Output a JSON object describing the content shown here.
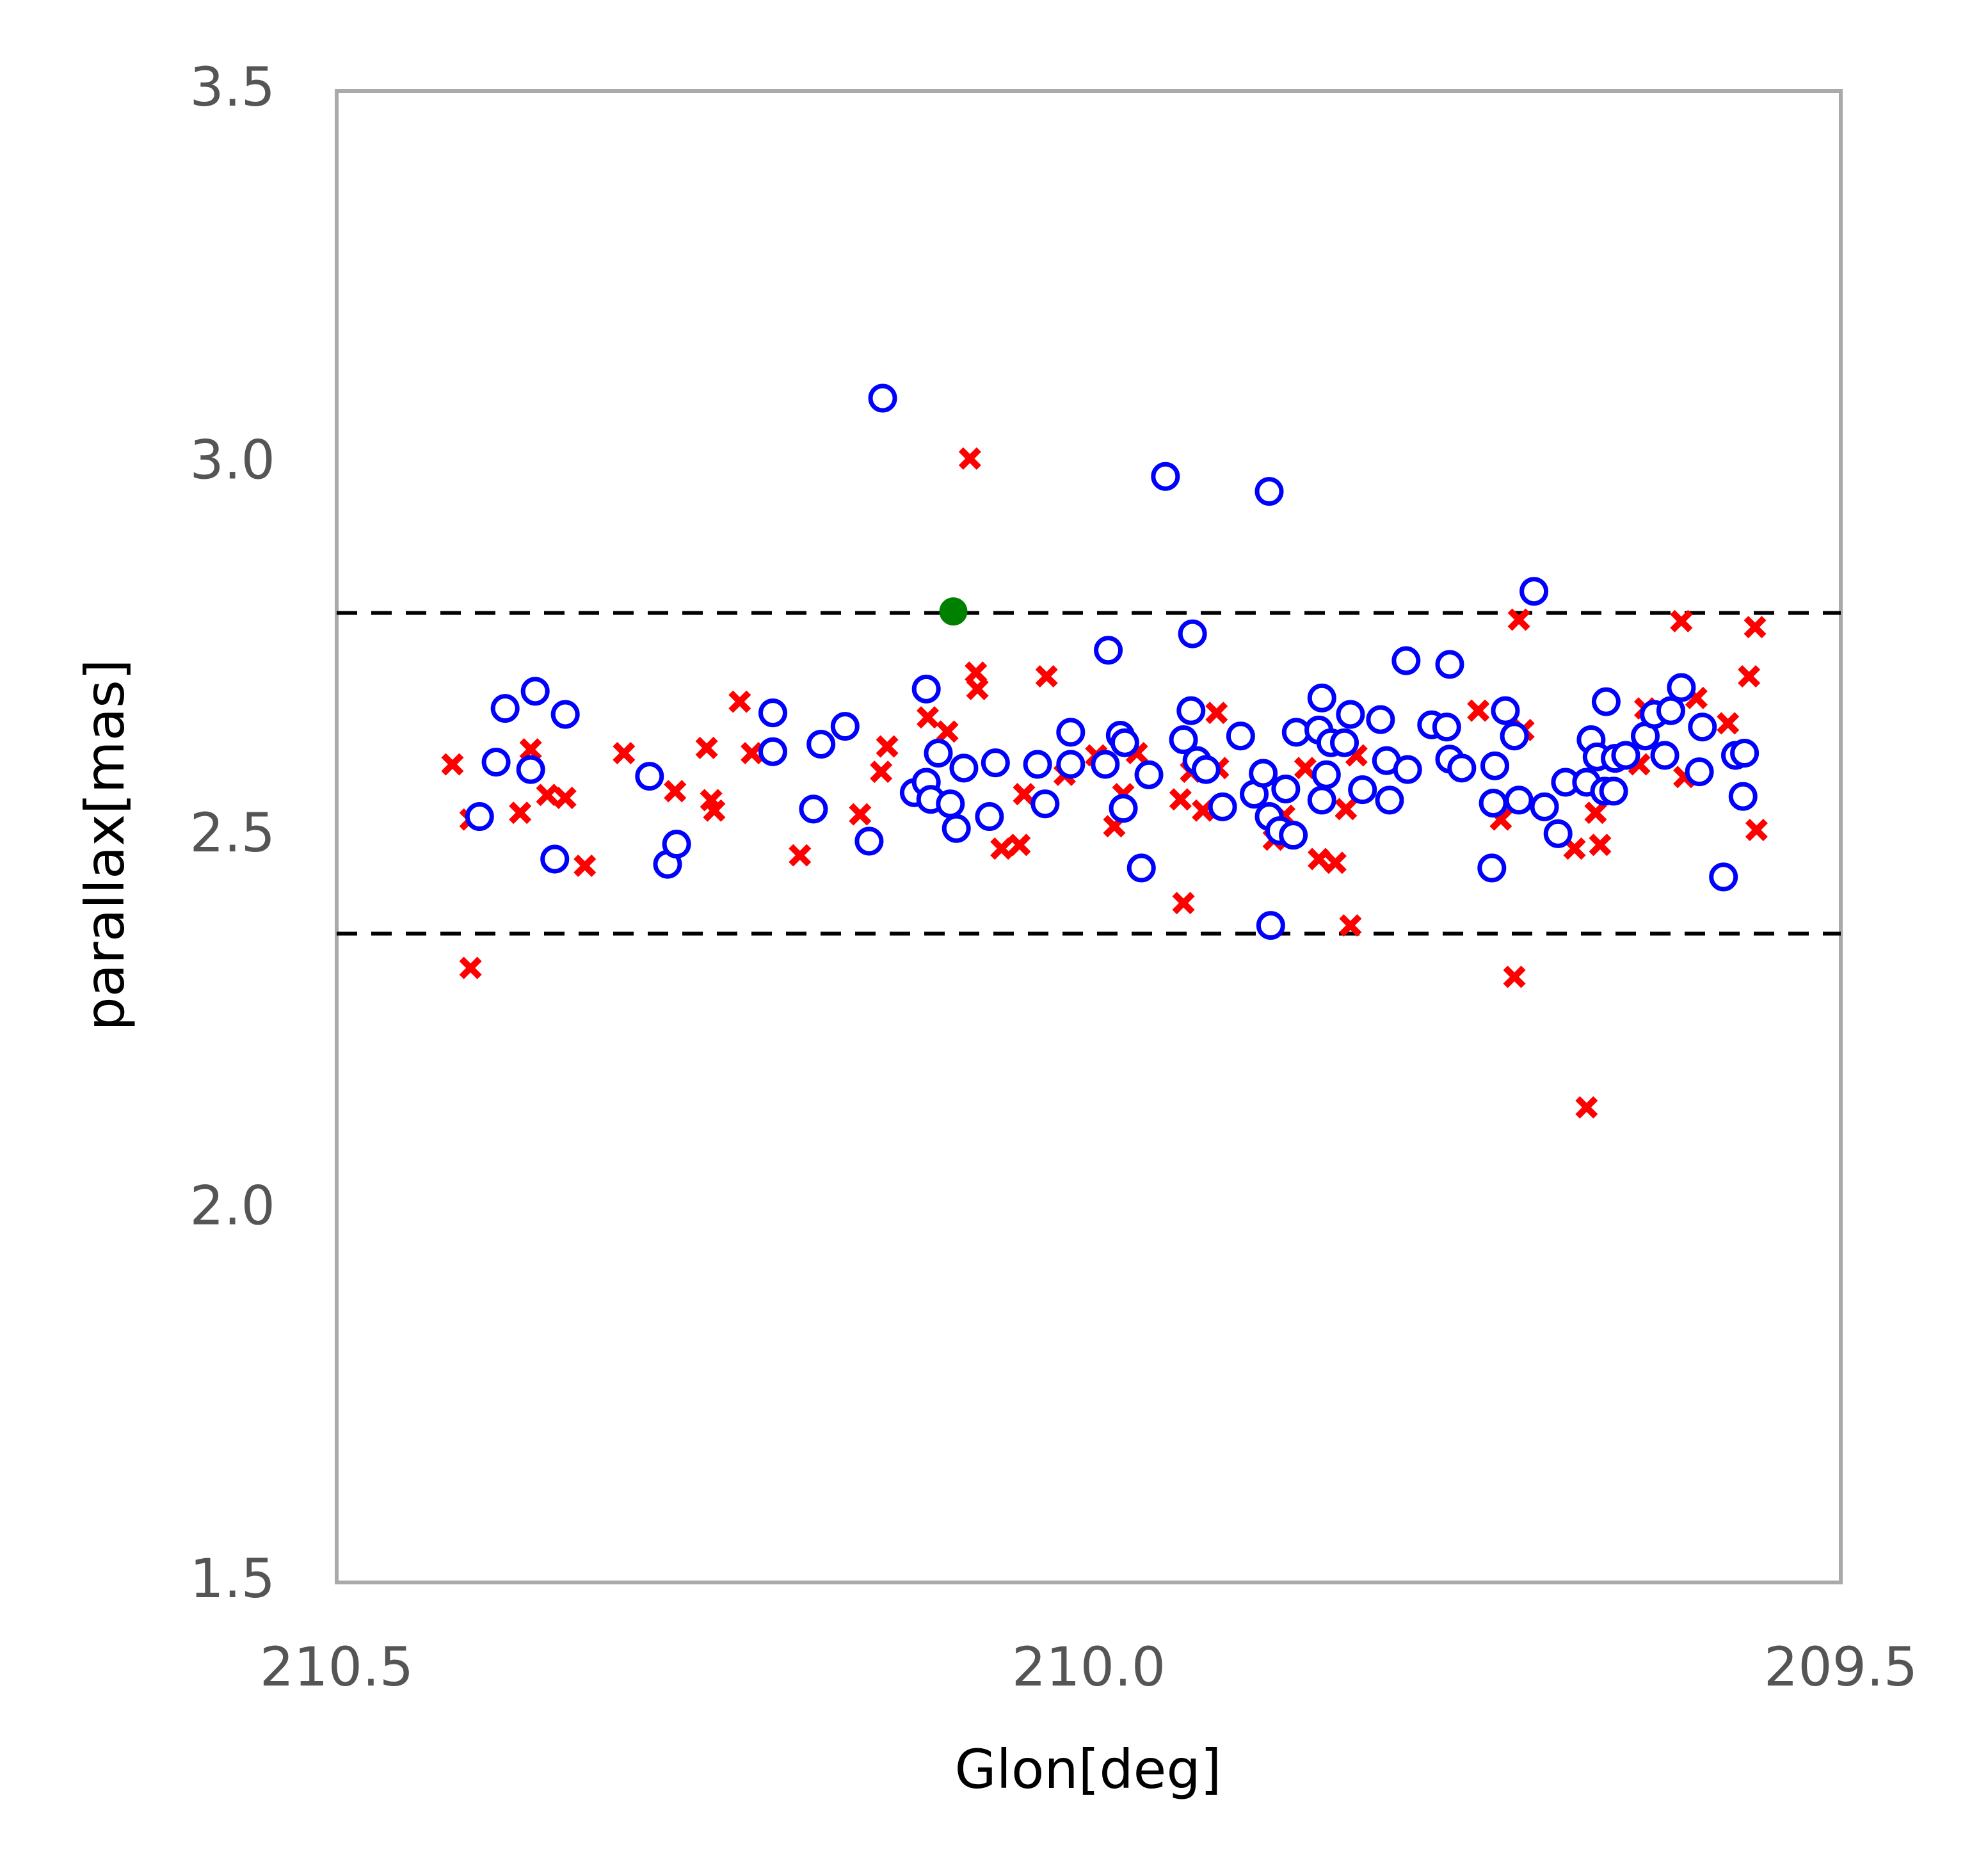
{
  "chart_data": {
    "type": "scatter",
    "xlabel": "Glon[deg]",
    "ylabel": "parallax[mas]",
    "xlim": [
      210.5,
      209.5
    ],
    "ylim": [
      1.5,
      3.5
    ],
    "xticks": [
      210.5,
      {
        "value": 210,
        "label": "210.0"
      },
      209.5
    ],
    "yticks": [
      1.5,
      {
        "value": 2,
        "label": "2.0"
      },
      2.5,
      {
        "value": 3,
        "label": "3.0"
      },
      3.5
    ],
    "hlines": [
      2.8,
      2.37
    ],
    "hline_color": "#000000",
    "frame_color": "#aaaaaa",
    "series": [
      {
        "marker": "x",
        "color": "#ff0000",
        "x": [
          210.423,
          210.411,
          210.411,
          210.378,
          210.371,
          210.36,
          210.348,
          210.335,
          210.309,
          210.275,
          210.254,
          210.251,
          210.249,
          210.232,
          210.224,
          210.192,
          210.152,
          210.138,
          210.134,
          210.107,
          210.094,
          210.079,
          210.075,
          210.074,
          210.058,
          210.046,
          210.043,
          210.028,
          210.016,
          209.995,
          209.983,
          209.977,
          209.968,
          209.939,
          209.937,
          209.932,
          209.924,
          209.915,
          209.914,
          209.877,
          209.87,
          209.856,
          209.847,
          209.836,
          209.829,
          209.826,
          209.822,
          209.741,
          209.726,
          209.717,
          209.714,
          209.711,
          209.677,
          209.669,
          209.66,
          209.663,
          209.634,
          209.63,
          209.606,
          209.604,
          209.596,
          209.575,
          209.561,
          209.557,
          209.556
        ],
        "y": [
          2.597,
          2.523,
          2.324,
          2.532,
          2.617,
          2.556,
          2.552,
          2.461,
          2.612,
          2.561,
          2.619,
          2.549,
          2.535,
          2.681,
          2.612,
          2.475,
          2.53,
          2.587,
          2.621,
          2.66,
          2.641,
          3.007,
          2.72,
          2.698,
          2.484,
          2.489,
          2.557,
          2.715,
          2.583,
          2.609,
          2.514,
          2.557,
          2.612,
          2.55,
          2.411,
          2.587,
          2.535,
          2.666,
          2.592,
          2.496,
          2.528,
          2.592,
          2.47,
          2.465,
          2.537,
          2.381,
          2.609,
          2.669,
          2.523,
          2.312,
          2.791,
          2.643,
          2.484,
          2.137,
          2.489,
          2.532,
          2.597,
          2.672,
          2.789,
          2.58,
          2.686,
          2.652,
          2.715,
          2.781,
          2.509
        ]
      },
      {
        "marker": "o",
        "color": "#0000ff",
        "x": [
          210.405,
          210.394,
          210.388,
          210.368,
          210.371,
          210.348,
          210.355,
          210.292,
          210.28,
          210.274,
          210.21,
          210.21,
          210.183,
          210.178,
          210.162,
          210.146,
          210.137,
          210.116,
          210.108,
          210.108,
          210.105,
          210.1,
          210.092,
          210.088,
          210.083,
          210.066,
          210.062,
          210.034,
          210.029,
          210.012,
          210.012,
          209.989,
          209.987,
          209.979,
          209.976,
          209.977,
          209.965,
          209.96,
          209.949,
          209.937,
          209.932,
          209.931,
          209.928,
          209.922,
          209.911,
          209.899,
          209.89,
          209.884,
          209.88,
          209.88,
          209.879,
          209.873,
          209.869,
          209.864,
          209.862,
          209.847,
          209.845,
          209.842,
          209.845,
          209.839,
          209.83,
          209.826,
          209.818,
          209.806,
          209.802,
          209.8,
          209.789,
          209.788,
          209.772,
          209.762,
          209.76,
          209.76,
          209.752,
          209.731,
          209.73,
          209.732,
          209.723,
          209.717,
          209.714,
          209.704,
          209.697,
          209.688,
          209.683,
          209.669,
          209.666,
          209.662,
          209.656,
          209.657,
          209.651,
          209.65,
          209.643,
          209.63,
          209.624,
          209.617,
          209.613,
          209.606,
          209.594,
          209.592,
          209.578,
          209.57,
          209.565,
          209.564
        ],
        "y": [
          2.527,
          2.6,
          2.672,
          2.695,
          2.59,
          2.664,
          2.47,
          2.581,
          2.463,
          2.49,
          2.666,
          2.614,
          2.537,
          2.624,
          2.648,
          2.494,
          3.088,
          2.559,
          2.573,
          2.698,
          2.55,
          2.612,
          2.544,
          2.511,
          2.592,
          2.527,
          2.599,
          2.597,
          2.544,
          2.64,
          2.597,
          2.597,
          2.75,
          2.636,
          2.626,
          2.538,
          2.458,
          2.583,
          2.983,
          2.63,
          2.669,
          2.772,
          2.602,
          2.59,
          2.54,
          2.635,
          2.557,
          2.585,
          2.527,
          2.963,
          2.381,
          2.508,
          2.564,
          2.502,
          2.64,
          2.643,
          2.686,
          2.583,
          2.549,
          2.626,
          2.626,
          2.664,
          2.563,
          2.657,
          2.602,
          2.549,
          2.736,
          2.59,
          2.65,
          2.647,
          2.731,
          2.604,
          2.592,
          2.545,
          2.595,
          2.458,
          2.669,
          2.635,
          2.549,
          2.829,
          2.54,
          2.504,
          2.573,
          2.573,
          2.63,
          2.607,
          2.681,
          2.561,
          2.561,
          2.605,
          2.609,
          2.635,
          2.664,
          2.609,
          2.669,
          2.7,
          2.587,
          2.647,
          2.446,
          2.609,
          2.554,
          2.612
        ]
      },
      {
        "marker": "dot",
        "color": "#008000",
        "x": [
          210.09
        ],
        "y": [
          2.802
        ]
      }
    ]
  }
}
